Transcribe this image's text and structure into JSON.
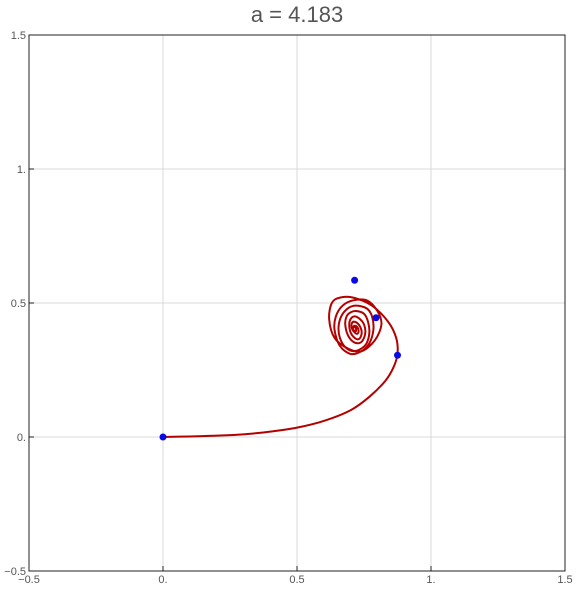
{
  "chart_data": {
    "type": "line",
    "title": "a = 4.183",
    "xlabel": "",
    "ylabel": "",
    "xlim": [
      -0.5,
      1.5
    ],
    "ylim": [
      -0.5,
      1.5
    ],
    "grid": true,
    "x_ticks": [
      {
        "value": -0.5,
        "label": "−0.5"
      },
      {
        "value": 0,
        "label": "0."
      },
      {
        "value": 0.5,
        "label": "0.5"
      },
      {
        "value": 1,
        "label": "1."
      },
      {
        "value": 1.5,
        "label": "1.5"
      }
    ],
    "y_ticks": [
      {
        "value": -0.5,
        "label": "−0.5"
      },
      {
        "value": 0,
        "label": "0."
      },
      {
        "value": 0.5,
        "label": "0.5"
      },
      {
        "value": 1,
        "label": "1."
      },
      {
        "value": 1.5,
        "label": "1.5"
      }
    ],
    "series": [
      {
        "color": "#b30000",
        "x": [
          0,
          0.1,
          0.2,
          0.3,
          0.4,
          0.5,
          0.6,
          0.7,
          0.77,
          0.83,
          0.86,
          0.875,
          0.87,
          0.84,
          0.78,
          0.71,
          0.66,
          0.63,
          0.62,
          0.64,
          0.69,
          0.74,
          0.79,
          0.815,
          0.8,
          0.76,
          0.71,
          0.67,
          0.645,
          0.64,
          0.66,
          0.7,
          0.74,
          0.77,
          0.785,
          0.78,
          0.76,
          0.72,
          0.69,
          0.665,
          0.655,
          0.66,
          0.68,
          0.71,
          0.74,
          0.76,
          0.77,
          0.765,
          0.75,
          0.72,
          0.7,
          0.685,
          0.68,
          0.69,
          0.71,
          0.73,
          0.745,
          0.755,
          0.75,
          0.735,
          0.715,
          0.7,
          0.695,
          0.7,
          0.715,
          0.73,
          0.74,
          0.74,
          0.73,
          0.715,
          0.705,
          0.705,
          0.715,
          0.725,
          0.73,
          0.725,
          0.715,
          0.71,
          0.71,
          0.72,
          0.72,
          0.715
        ],
        "y": [
          0,
          0.002,
          0.005,
          0.01,
          0.02,
          0.035,
          0.06,
          0.1,
          0.15,
          0.21,
          0.26,
          0.31,
          0.37,
          0.43,
          0.49,
          0.52,
          0.52,
          0.5,
          0.44,
          0.37,
          0.33,
          0.32,
          0.36,
          0.42,
          0.47,
          0.51,
          0.51,
          0.49,
          0.45,
          0.4,
          0.34,
          0.31,
          0.32,
          0.35,
          0.4,
          0.45,
          0.48,
          0.49,
          0.48,
          0.45,
          0.41,
          0.37,
          0.335,
          0.32,
          0.33,
          0.35,
          0.39,
          0.43,
          0.46,
          0.47,
          0.465,
          0.45,
          0.42,
          0.38,
          0.355,
          0.35,
          0.36,
          0.39,
          0.42,
          0.44,
          0.45,
          0.44,
          0.42,
          0.39,
          0.37,
          0.365,
          0.38,
          0.4,
          0.42,
          0.43,
          0.425,
          0.405,
          0.39,
          0.385,
          0.395,
          0.41,
          0.415,
          0.41,
          0.4,
          0.395,
          0.405,
          0.41
        ]
      }
    ],
    "points": [
      {
        "x": 0,
        "y": 0,
        "color": "#0a0ae6"
      },
      {
        "x": 0.715,
        "y": 0.585,
        "color": "#0a0ae6"
      },
      {
        "x": 0.795,
        "y": 0.445,
        "color": "#0a0ae6"
      },
      {
        "x": 0.875,
        "y": 0.305,
        "color": "#0a0ae6"
      }
    ]
  }
}
